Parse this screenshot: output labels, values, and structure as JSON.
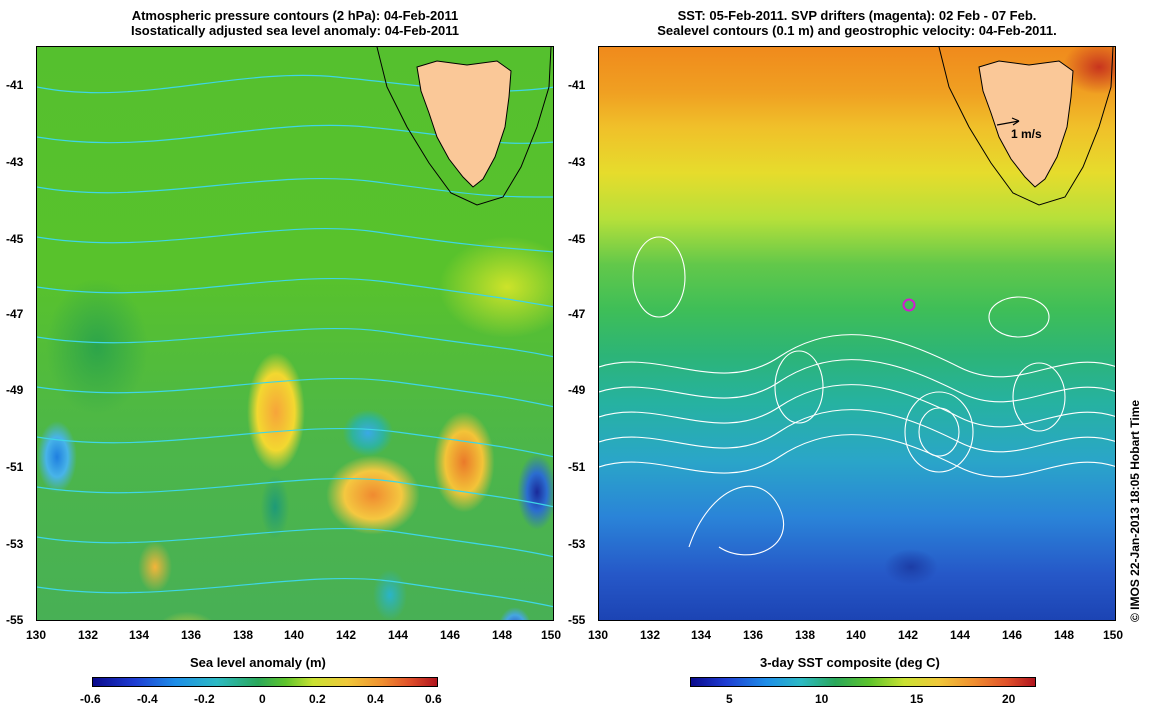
{
  "left_panel": {
    "title_line1": "Atmospheric pressure contours (2 hPa): 04-Feb-2011",
    "title_line2": "Isostatically adjusted sea level anomaly: 04-Feb-2011",
    "colorbar": {
      "label": "Sea level anomaly (m)",
      "ticks": [
        "-0.6",
        "-0.4",
        "-0.2",
        "0",
        "0.2",
        "0.4",
        "0.6"
      ]
    }
  },
  "right_panel": {
    "title_line1": "SST: 05-Feb-2011. SVP drifters (magenta): 02 Feb - 07 Feb.",
    "title_line2": "Sealevel contours (0.1 m) and geostrophic velocity: 04-Feb-2011.",
    "velocity_scale_label": "1 m/s",
    "colorbar": {
      "label": "3-day SST composite (deg C)",
      "ticks": [
        "5",
        "10",
        "15",
        "20"
      ]
    }
  },
  "axes": {
    "y_ticks": [
      "-41",
      "-43",
      "-45",
      "-47",
      "-49",
      "-51",
      "-53",
      "-55"
    ],
    "x_ticks": [
      "130",
      "132",
      "134",
      "136",
      "138",
      "140",
      "142",
      "144",
      "146",
      "148",
      "150"
    ]
  },
  "credit": "© IMOS 22-Jan-2013 18:05 Hobart Time",
  "colors": {
    "land": "#fac898",
    "pressure_contours": "#3ed6e6",
    "sealevel_contours": "#ffffff",
    "drifter": "#d01cd0"
  },
  "icons": [
    "velocity-arrow-icon",
    "drifter-marker-icon"
  ]
}
